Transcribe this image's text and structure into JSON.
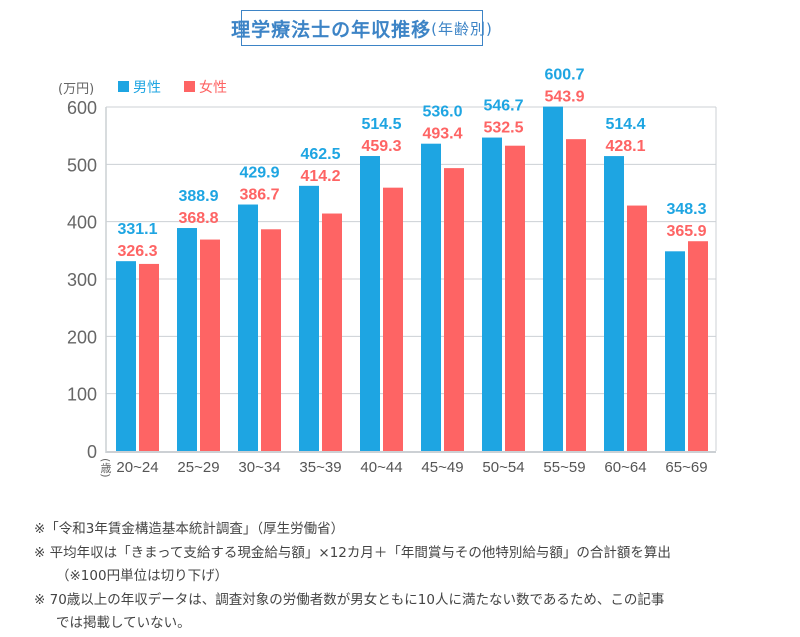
{
  "title": "理学療法士の年収推移",
  "title_sub": "(年齢別)",
  "chart_data": {
    "type": "bar",
    "title": "理学療法士の年収推移(年齢別)",
    "ylabel": "(万円)",
    "xlabel": "(歳)",
    "ylim": [
      0,
      600
    ],
    "yticks": [
      0,
      100,
      200,
      300,
      400,
      500,
      600
    ],
    "grid": "horizontal",
    "legend": "top-left",
    "categories": [
      "20~24",
      "25~29",
      "30~34",
      "35~39",
      "40~44",
      "45~49",
      "50~54",
      "55~59",
      "60~64",
      "65~69"
    ],
    "series": [
      {
        "name": "男性",
        "color": "#1ea5e2",
        "values": [
          331.1,
          388.9,
          429.9,
          462.5,
          514.5,
          536.0,
          546.7,
          600.7,
          514.4,
          348.3
        ]
      },
      {
        "name": "女性",
        "color": "#fe6464",
        "values": [
          326.3,
          368.8,
          386.7,
          414.2,
          459.3,
          493.4,
          532.5,
          543.9,
          428.1,
          365.9
        ]
      }
    ]
  },
  "notes": [
    "※「令和3年賃金構造基本統計調査」（厚生労働省）",
    "※  平均年収は「きまって支給する現金給与額」×12カ月＋「年間賞与その他特別給与額」の合計額を算出",
    "（※100円単位は切り下げ）",
    "※  70歳以上の年収データは、調査対象の労働者数が男女ともに10人に満たない数であるため、この記事",
    "では掲載していない。"
  ]
}
